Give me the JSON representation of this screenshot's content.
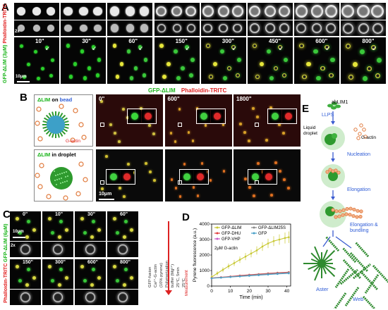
{
  "panels": {
    "A": {
      "label": "A",
      "y_label_green": "GFP-ΔLIM (3μM)",
      "y_label_red": "Phalloidin-TRITC",
      "zoom": "2x",
      "times": [
        "10\"",
        "30\"",
        "60\"",
        "150\"",
        "300\"",
        "450\"",
        "600\"",
        "800\""
      ],
      "scale": "10μm"
    },
    "B": {
      "label": "B",
      "title_green": "GFP-ΔLIM",
      "title_red": "Phalloidin-TRITC",
      "bead_title_a": "ΔLIM",
      "bead_title_b": " on ",
      "bead_title_c": "bead",
      "droplet_title_a": "ΔLIM",
      "droplet_title_b": " in droplet",
      "gactin": "G-actin",
      "times": [
        "0\"",
        "600\"",
        "1800\""
      ],
      "scale": "10μm"
    },
    "C": {
      "label": "C",
      "y_label_green": "GFP-ΔLIM (6μM)",
      "y_label_red": "Phalloidin-TRITC",
      "zoom": "2x",
      "times_top": [
        "0\"",
        "10\"",
        "30\"",
        "60\""
      ],
      "times_bottom": [
        "150\"",
        "300\"",
        "600\"",
        "800\""
      ],
      "scale": "10μm",
      "protocol": [
        "GFP-fusion",
        "Ca²⁺-G-actin",
        "(10% pyrene)",
        "Polymerization",
        "buffer (Mg²⁺)",
        "25°C, 5min",
        "25°C"
      ],
      "measurement": "Measurement"
    },
    "D": {
      "label": "D",
      "annotation": "2μM G-actin"
    },
    "E": {
      "label": "E",
      "ablim": "abLIM1",
      "llps": "LLPS",
      "liquid_droplet": "Liquid droplet",
      "gactin": "G-actin",
      "nucleation": "Nucleation",
      "elongation": "Elongation",
      "elong_bundling": "Elongation & bundling",
      "aster": "Aster",
      "web": "Web"
    }
  },
  "colors": {
    "green": "#19b419",
    "red": "#e01e1e",
    "blue": "#2d5bd6",
    "yellow": "#c8c832"
  },
  "chart_data": {
    "type": "line",
    "xlabel": "Time (min)",
    "ylabel": "Pyrene fluorescence (a.u.)",
    "xlim": [
      0,
      42
    ],
    "ylim": [
      0,
      4000
    ],
    "xticks": [
      0,
      10,
      20,
      30,
      40
    ],
    "yticks": [
      0,
      1000,
      2000,
      3000,
      4000
    ],
    "series": [
      {
        "name": "GFP-ΔLIM",
        "color": "#c8c832",
        "x": [
          0,
          3,
          6,
          9,
          12,
          15,
          18,
          21,
          24,
          27,
          30,
          33,
          36,
          39,
          41
        ],
        "y": [
          580,
          820,
          1050,
          1280,
          1480,
          1700,
          1900,
          2100,
          2300,
          2550,
          2750,
          2900,
          3000,
          3100,
          3150
        ]
      },
      {
        "name": "GFP-DHU",
        "color": "#e03c3c",
        "x": [
          0,
          5,
          10,
          15,
          20,
          25,
          30,
          35,
          41
        ],
        "y": [
          520,
          570,
          620,
          680,
          730,
          770,
          820,
          860,
          900
        ]
      },
      {
        "name": "GFP-VHP",
        "color": "#c85ac8",
        "x": [
          0,
          5,
          10,
          15,
          20,
          25,
          30,
          35,
          41
        ],
        "y": [
          500,
          550,
          600,
          650,
          700,
          740,
          780,
          820,
          860
        ]
      },
      {
        "name": "GFP-ΔLIM25S",
        "color": "#888888",
        "x": [
          0,
          5,
          10,
          15,
          20,
          25,
          30,
          35,
          41
        ],
        "y": [
          510,
          555,
          600,
          650,
          700,
          745,
          790,
          830,
          870
        ]
      },
      {
        "name": "GFP",
        "color": "#4aa0c8",
        "x": [
          0,
          5,
          10,
          15,
          20,
          25,
          30,
          35,
          41
        ],
        "y": [
          500,
          540,
          580,
          620,
          660,
          700,
          740,
          780,
          820
        ]
      }
    ]
  }
}
